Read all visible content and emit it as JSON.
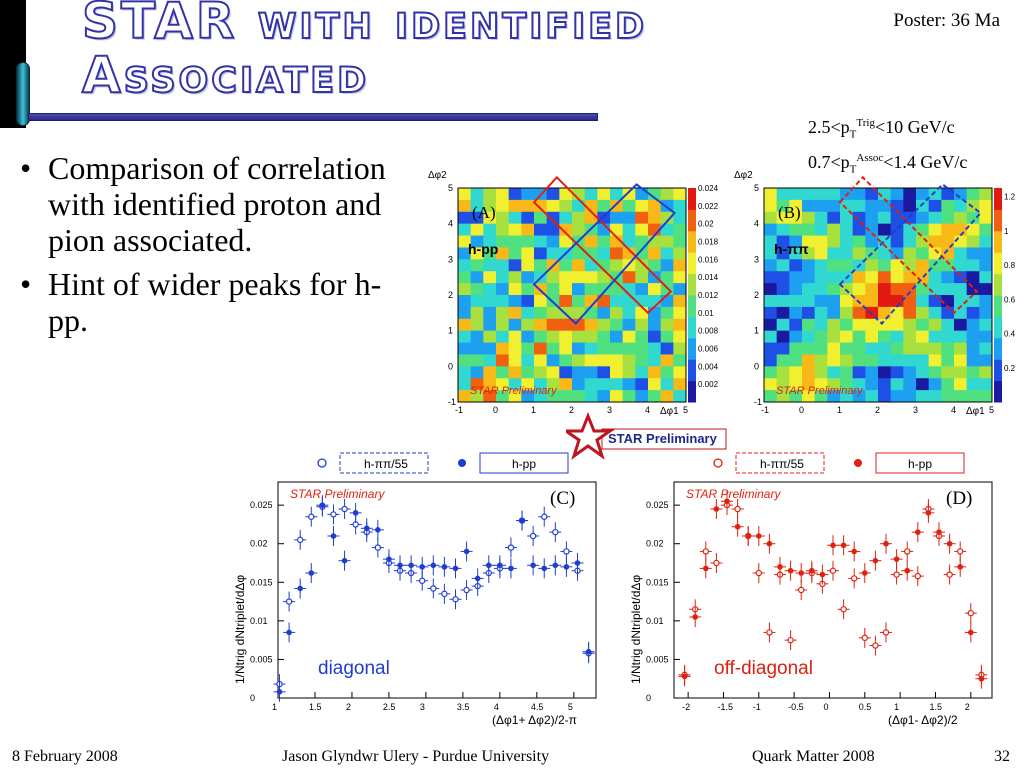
{
  "slide": {
    "title_line1": "STAR with identified",
    "title_line2": "Associated",
    "poster": "Poster: 36 Ma",
    "cut1": {
      "pre": "2.5<p",
      "sub": "T",
      "sup": "Trig",
      "post": "<10 GeV/c"
    },
    "cut2": {
      "pre": "0.7<p",
      "sub": "T",
      "sup": "Assoc",
      "post": "<1.4 GeV/c"
    },
    "bullets": [
      "Comparison of correlation with identified proton and pion associated.",
      "Hint of wider peaks for h-pp."
    ]
  },
  "footer": {
    "date": "8 February 2008",
    "author": "Jason Glyndwr Ulery - Purdue University",
    "conference": "Quark Matter 2008",
    "page": "32"
  },
  "star_logo": "STAR Preliminary",
  "colors": {
    "blue": "#1f3ed0",
    "red": "#e02010",
    "title_outline": "#3333a8"
  },
  "chart_data": [
    {
      "type": "heatmap",
      "panel": "(A)",
      "label": "h-pp",
      "watermark": "STAR Preliminary",
      "xlabel": "Δφ1",
      "ylabel": "Δφ2",
      "xlim": [
        -1,
        5
      ],
      "ylim": [
        -1,
        5
      ],
      "xticks": [
        "-1",
        "0",
        "1",
        "2",
        "3",
        "4",
        "5"
      ],
      "yticks": [
        "-1",
        "0",
        "1",
        "2",
        "3",
        "4",
        "5"
      ],
      "zlim": [
        0,
        0.024
      ],
      "zticks": [
        "0.024",
        "0.022",
        "0.02",
        "0.018",
        "0.016",
        "0.014",
        "0.012",
        "0.01",
        "0.008",
        "0.006",
        "0.004",
        "0.002"
      ],
      "colorscale": [
        "#1a1aa0",
        "#1e50e6",
        "#1ea0f0",
        "#30d8d0",
        "#50e080",
        "#a8e040",
        "#f0f030",
        "#f8b818",
        "#f06010",
        "#e01a10"
      ]
    },
    {
      "type": "heatmap",
      "panel": "(B)",
      "label": "h-ππ",
      "watermark": "STAR Preliminary",
      "xlabel": "Δφ1",
      "ylabel": "Δφ2",
      "xlim": [
        -1,
        5
      ],
      "ylim": [
        -1,
        5
      ],
      "xticks": [
        "-1",
        "0",
        "1",
        "2",
        "3",
        "4",
        "5"
      ],
      "yticks": [
        "-1",
        "0",
        "1",
        "2",
        "3",
        "4",
        "5"
      ],
      "zlim": [
        0,
        1.25
      ],
      "zticks": [
        "1.2",
        "1",
        "0.8",
        "0.6",
        "0.4",
        "0.2"
      ],
      "colorscale": [
        "#1a1aa0",
        "#1e50e6",
        "#1ea0f0",
        "#30d8d0",
        "#50e080",
        "#a8e040",
        "#f0f030",
        "#f8b818",
        "#f06010",
        "#e01a10"
      ]
    },
    {
      "type": "scatter",
      "panel": "(C)",
      "label": "diagonal",
      "watermark": "STAR Preliminary",
      "xlabel": "(Δφ1+ Δφ2)/2-π",
      "ylabel": "1/Ntrig dNtriplet/dΔφ",
      "xlim": [
        1,
        5.3
      ],
      "ylim": [
        0,
        0.028
      ],
      "xticks": [
        "1",
        "1.5",
        "2",
        "2.5",
        "3",
        "3.5",
        "4",
        "4.5",
        "5"
      ],
      "yticks": [
        "0",
        "0.005",
        "0.01",
        "0.015",
        "0.02",
        "0.025"
      ],
      "legend": [
        "h-ππ/55",
        "h-pp"
      ],
      "series": [
        {
          "name": "h-ππ/55",
          "marker": "open",
          "x": [
            1.02,
            1.15,
            1.3,
            1.45,
            1.6,
            1.75,
            1.9,
            2.05,
            2.2,
            2.35,
            2.5,
            2.65,
            2.8,
            2.95,
            3.1,
            3.25,
            3.4,
            3.55,
            3.7,
            3.85,
            4.0,
            4.15,
            4.3,
            4.45,
            4.6,
            4.75,
            4.9,
            5.05,
            5.2
          ],
          "y": [
            0.0018,
            0.0125,
            0.0205,
            0.0235,
            0.0248,
            0.0238,
            0.0245,
            0.0225,
            0.0215,
            0.0195,
            0.0175,
            0.0165,
            0.0162,
            0.0152,
            0.0142,
            0.0135,
            0.0128,
            0.014,
            0.0145,
            0.0162,
            0.0168,
            0.0195,
            0.023,
            0.021,
            0.0235,
            0.0215,
            0.019,
            0.0165,
            0.0058
          ]
        },
        {
          "name": "h-pp",
          "marker": "filled",
          "x": [
            1.02,
            1.15,
            1.3,
            1.45,
            1.6,
            1.75,
            1.9,
            2.05,
            2.2,
            2.35,
            2.5,
            2.65,
            2.8,
            2.95,
            3.1,
            3.25,
            3.4,
            3.55,
            3.7,
            3.85,
            4.0,
            4.15,
            4.3,
            4.45,
            4.6,
            4.75,
            4.9,
            5.05,
            5.2
          ],
          "y": [
            0.0008,
            0.0085,
            0.0142,
            0.0162,
            0.025,
            0.021,
            0.0178,
            0.024,
            0.022,
            0.0218,
            0.018,
            0.0172,
            0.0172,
            0.017,
            0.0172,
            0.017,
            0.0168,
            0.019,
            0.0155,
            0.0172,
            0.0172,
            0.0168,
            0.023,
            0.0172,
            0.0168,
            0.0172,
            0.017,
            0.0175,
            0.006
          ]
        }
      ]
    },
    {
      "type": "scatter",
      "panel": "(D)",
      "label": "off-diagonal",
      "watermark": "STAR Preliminary",
      "xlabel": "(Δφ1- Δφ2)/2",
      "ylabel": "1/Ntrig dNtriplet/dΔφ",
      "xlim": [
        -2.2,
        2.3
      ],
      "ylim": [
        0,
        0.028
      ],
      "xticks": [
        "-2",
        "-1.5",
        "-1",
        "-0.5",
        "0",
        "0.5",
        "1",
        "1.5",
        "2"
      ],
      "yticks": [
        "0",
        "0.005",
        "0.01",
        "0.015",
        "0.02",
        "0.025"
      ],
      "legend": [
        "h-ππ/55",
        "h-pp"
      ],
      "series": [
        {
          "name": "h-ππ/55",
          "marker": "open",
          "x": [
            -2.05,
            -1.9,
            -1.75,
            -1.6,
            -1.45,
            -1.3,
            -1.15,
            -1.0,
            -0.85,
            -0.7,
            -0.55,
            -0.4,
            -0.25,
            -0.1,
            0.05,
            0.2,
            0.35,
            0.5,
            0.65,
            0.8,
            0.95,
            1.1,
            1.25,
            1.4,
            1.55,
            1.7,
            1.85,
            2.0,
            2.15
          ],
          "y": [
            0.003,
            0.0115,
            0.019,
            0.0175,
            0.025,
            0.0245,
            0.021,
            0.0162,
            0.0085,
            0.016,
            0.0075,
            0.014,
            0.0162,
            0.0148,
            0.0165,
            0.0115,
            0.0155,
            0.0078,
            0.0068,
            0.0085,
            0.016,
            0.019,
            0.0158,
            0.0245,
            0.021,
            0.016,
            0.019,
            0.011,
            0.003
          ]
        },
        {
          "name": "h-pp",
          "marker": "filled",
          "x": [
            -2.05,
            -1.9,
            -1.75,
            -1.6,
            -1.45,
            -1.3,
            -1.15,
            -1.0,
            -0.85,
            -0.7,
            -0.55,
            -0.4,
            -0.25,
            -0.1,
            0.05,
            0.2,
            0.35,
            0.5,
            0.65,
            0.8,
            0.95,
            1.1,
            1.25,
            1.4,
            1.55,
            1.7,
            1.85,
            2.0,
            2.15
          ],
          "y": [
            0.0028,
            0.0105,
            0.0168,
            0.0245,
            0.0255,
            0.0222,
            0.021,
            0.021,
            0.02,
            0.017,
            0.0165,
            0.0162,
            0.0165,
            0.016,
            0.0198,
            0.0198,
            0.019,
            0.0162,
            0.0178,
            0.02,
            0.018,
            0.0165,
            0.0215,
            0.024,
            0.0215,
            0.02,
            0.017,
            0.0085,
            0.0025
          ]
        }
      ]
    }
  ]
}
